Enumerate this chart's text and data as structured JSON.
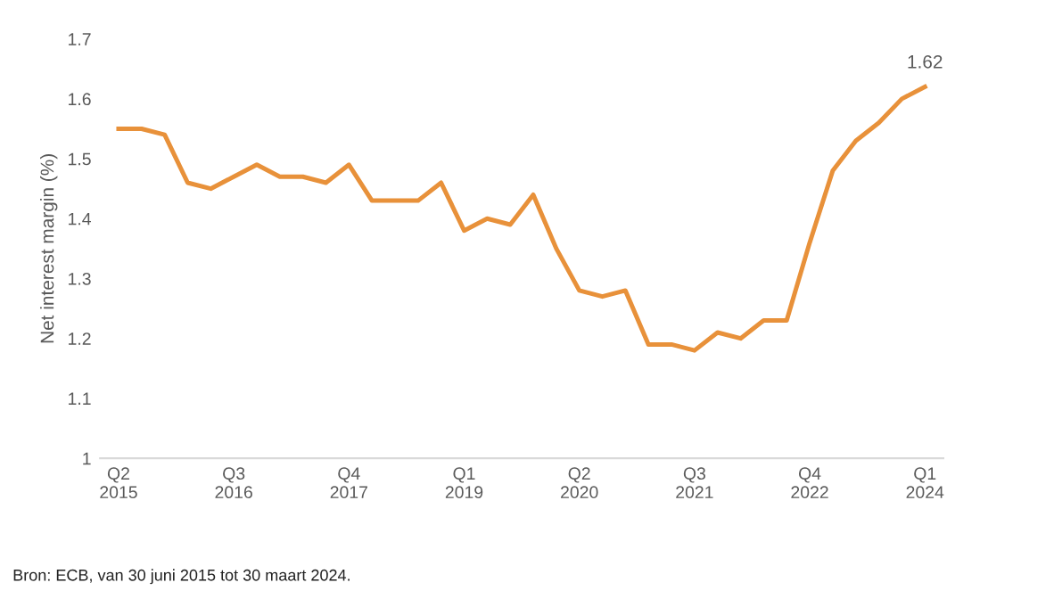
{
  "chart_data": {
    "type": "line",
    "ylabel": "Net interest margin (%)",
    "categories": [
      "Q2\n2015",
      null,
      null,
      null,
      null,
      "Q3\n2016",
      null,
      null,
      null,
      null,
      "Q4\n2017",
      null,
      null,
      null,
      null,
      "Q1\n2019",
      null,
      null,
      null,
      null,
      "Q2\n2020",
      null,
      null,
      null,
      null,
      "Q3\n2021",
      null,
      null,
      null,
      null,
      "Q4\n2022",
      null,
      null,
      null,
      null,
      "Q1\n2024"
    ],
    "series": [
      {
        "color": "#e8913a",
        "values": [
          1.55,
          1.55,
          1.54,
          1.46,
          1.45,
          1.47,
          1.49,
          1.47,
          1.47,
          1.46,
          1.49,
          1.43,
          1.43,
          1.43,
          1.46,
          1.38,
          1.4,
          1.39,
          1.44,
          1.35,
          1.28,
          1.27,
          1.28,
          1.19,
          1.19,
          1.18,
          1.21,
          1.2,
          1.23,
          1.23,
          1.36,
          1.48,
          1.53,
          1.56,
          1.6,
          1.62
        ],
        "value_labels": [
          null,
          null,
          null,
          null,
          null,
          null,
          null,
          null,
          null,
          null,
          null,
          null,
          null,
          null,
          null,
          null,
          null,
          null,
          null,
          null,
          null,
          null,
          null,
          null,
          null,
          null,
          null,
          null,
          null,
          null,
          null,
          null,
          null,
          null,
          null,
          "1.62"
        ]
      }
    ],
    "ylim": [
      1,
      1.7
    ],
    "yticks": [
      1,
      1.1,
      1.2,
      1.3,
      1.4,
      1.5,
      1.6,
      1.7
    ],
    "grid": false,
    "legend": false,
    "marker": "none",
    "line_style": "solid",
    "annotations": [
      "Bron: ECB, van 30 juni 2015 tot 30 maart 2024."
    ]
  }
}
